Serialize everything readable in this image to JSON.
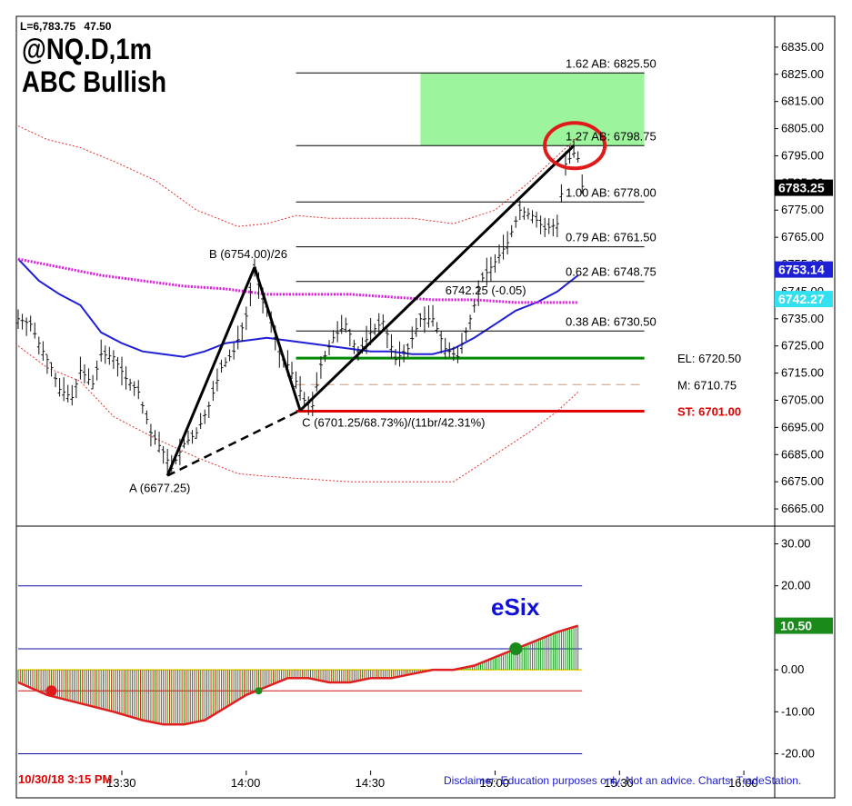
{
  "header": {
    "last_price": "L=6,783.75",
    "change": "47.50",
    "symbol": "@NQ.D,1m",
    "pattern": "ABC Bullish"
  },
  "footer": {
    "datetime": "10/30/18 3:15 PM",
    "disclaimer": "Disclaimer: Education purposes only. Not an advice.  Charts: TradeStation."
  },
  "colors": {
    "target_zone": "#9cf59c",
    "el_line": "#008a00",
    "st_line": "#e00000",
    "m_line": "#c89a7a",
    "lower_band": "#e53030",
    "mid_ma": "#1f1fd6",
    "long_ma": "#e01ee0",
    "osc_up": "#14991a",
    "osc_down": "#e02020",
    "esix": "#1010d8"
  },
  "chart_data": [
    {
      "type": "line",
      "title": "@NQ.D,1m ABC Bullish",
      "price_axis_ticks": [
        "6835.00",
        "6825.00",
        "6815.00",
        "6805.00",
        "6795.00",
        "6785.00",
        "6775.00",
        "6765.00",
        "6755.00",
        "6745.00",
        "6735.00",
        "6725.00",
        "6715.00",
        "6705.00",
        "6695.00",
        "6685.00",
        "6675.00",
        "6665.00"
      ],
      "time_axis_ticks": [
        "13:30",
        "14:00",
        "14:30",
        "15:00",
        "15:30",
        "16:00"
      ],
      "ylim": [
        6659,
        6845
      ],
      "xlim": [
        "13:05",
        "16:07"
      ],
      "series": [
        {
          "name": "price",
          "points": [
            [
              "13:05",
              6735
            ],
            [
              "13:08",
              6733
            ],
            [
              "13:10",
              6726
            ],
            [
              "13:13",
              6717
            ],
            [
              "13:15",
              6709
            ],
            [
              "13:18",
              6706
            ],
            [
              "13:20",
              6716
            ],
            [
              "13:23",
              6711
            ],
            [
              "13:25",
              6722
            ],
            [
              "13:28",
              6721
            ],
            [
              "13:31",
              6713
            ],
            [
              "13:34",
              6708
            ],
            [
              "13:37",
              6693
            ],
            [
              "13:40",
              6686
            ],
            [
              "13:42",
              6680
            ],
            [
              "13:45",
              6689
            ],
            [
              "13:48",
              6693
            ],
            [
              "13:51",
              6703
            ],
            [
              "13:54",
              6717
            ],
            [
              "13:57",
              6723
            ],
            [
              "14:00",
              6736
            ],
            [
              "14:02",
              6754
            ],
            [
              "14:04",
              6741
            ],
            [
              "14:06",
              6734
            ],
            [
              "14:08",
              6722
            ],
            [
              "14:10",
              6718
            ],
            [
              "14:12",
              6712
            ],
            [
              "14:14",
              6705
            ],
            [
              "14:16",
              6703
            ],
            [
              "14:18",
              6718
            ],
            [
              "14:21",
              6728
            ],
            [
              "14:24",
              6733
            ],
            [
              "14:27",
              6722
            ],
            [
              "14:30",
              6730
            ],
            [
              "14:33",
              6734
            ],
            [
              "14:36",
              6720
            ],
            [
              "14:39",
              6724
            ],
            [
              "14:42",
              6735
            ],
            [
              "14:45",
              6735
            ],
            [
              "14:48",
              6724
            ],
            [
              "14:51",
              6721
            ],
            [
              "14:54",
              6735
            ],
            [
              "14:57",
              6750
            ],
            [
              "15:00",
              6756
            ],
            [
              "15:03",
              6763
            ],
            [
              "15:06",
              6775
            ],
            [
              "15:09",
              6773
            ],
            [
              "15:12",
              6768
            ],
            [
              "15:15",
              6770
            ],
            [
              "15:17",
              6792
            ],
            [
              "15:19",
              6796
            ],
            [
              "15:20",
              6794
            ],
            [
              "15:21",
              6783.75
            ]
          ]
        },
        {
          "name": "ma_blue",
          "points": [
            [
              "13:05",
              6757
            ],
            [
              "13:10",
              6749
            ],
            [
              "13:15",
              6744
            ],
            [
              "13:20",
              6740
            ],
            [
              "13:25",
              6730
            ],
            [
              "13:30",
              6726
            ],
            [
              "13:35",
              6723
            ],
            [
              "13:40",
              6722
            ],
            [
              "13:45",
              6721
            ],
            [
              "13:50",
              6723
            ],
            [
              "13:55",
              6726
            ],
            [
              "14:00",
              6727
            ],
            [
              "14:05",
              6728
            ],
            [
              "14:10",
              6727
            ],
            [
              "14:15",
              6726
            ],
            [
              "14:20",
              6725
            ],
            [
              "14:25",
              6724
            ],
            [
              "14:30",
              6723
            ],
            [
              "14:35",
              6723
            ],
            [
              "14:40",
              6722
            ],
            [
              "14:45",
              6722
            ],
            [
              "14:50",
              6724
            ],
            [
              "14:55",
              6728
            ],
            [
              "15:00",
              6733
            ],
            [
              "15:05",
              6738
            ],
            [
              "15:10",
              6741
            ],
            [
              "15:15",
              6745
            ],
            [
              "15:20",
              6751
            ]
          ]
        },
        {
          "name": "ma_magenta",
          "points": [
            [
              "13:05",
              6757
            ],
            [
              "13:15",
              6754
            ],
            [
              "13:25",
              6751
            ],
            [
              "13:35",
              6749
            ],
            [
              "13:45",
              6747
            ],
            [
              "13:55",
              6746
            ],
            [
              "14:05",
              6744
            ],
            [
              "14:15",
              6744
            ],
            [
              "14:25",
              6744
            ],
            [
              "14:35",
              6743
            ],
            [
              "14:45",
              6742
            ],
            [
              "14:55",
              6742
            ],
            [
              "15:05",
              6741
            ],
            [
              "15:15",
              6741
            ],
            [
              "15:20",
              6741
            ]
          ]
        },
        {
          "name": "band_upper",
          "points": [
            [
              "13:05",
              6806
            ],
            [
              "13:12",
              6801
            ],
            [
              "13:20",
              6798
            ],
            [
              "13:28",
              6793
            ],
            [
              "13:38",
              6786
            ],
            [
              "13:48",
              6775
            ],
            [
              "13:58",
              6769
            ],
            [
              "14:05",
              6770
            ],
            [
              "14:12",
              6773
            ],
            [
              "14:20",
              6772
            ],
            [
              "14:30",
              6772
            ],
            [
              "14:40",
              6772
            ],
            [
              "14:50",
              6770
            ],
            [
              "15:00",
              6775
            ],
            [
              "15:08",
              6785
            ],
            [
              "15:15",
              6795
            ],
            [
              "15:20",
              6802
            ]
          ]
        },
        {
          "name": "band_lower",
          "points": [
            [
              "13:05",
              6725
            ],
            [
              "13:12",
              6717
            ],
            [
              "13:20",
              6712
            ],
            [
              "13:28",
              6699
            ],
            [
              "13:38",
              6691
            ],
            [
              "13:48",
              6684
            ],
            [
              "13:58",
              6678
            ],
            [
              "14:05",
              6677
            ],
            [
              "14:15",
              6676
            ],
            [
              "14:25",
              6675
            ],
            [
              "14:35",
              6675
            ],
            [
              "14:45",
              6675
            ],
            [
              "14:50",
              6675
            ],
            [
              "15:00",
              6685
            ],
            [
              "15:08",
              6693
            ],
            [
              "15:15",
              6701
            ],
            [
              "15:20",
              6708
            ]
          ]
        }
      ],
      "levels": [
        {
          "label": "1.62 AB: 6825.50",
          "value": 6825.5
        },
        {
          "label": "1.27 AB: 6798.75",
          "value": 6798.75
        },
        {
          "label": "1.00 AB: 6778.00",
          "value": 6778.0
        },
        {
          "label": "0.79 AB: 6761.50",
          "value": 6761.5
        },
        {
          "label": "0.62 AB: 6748.75",
          "value": 6748.75
        },
        {
          "label": "0.38 AB: 6730.50",
          "value": 6730.5
        },
        {
          "label": "EL: 6720.50",
          "value": 6720.5
        },
        {
          "label": "M: 6710.75",
          "value": 6710.75
        },
        {
          "label": "ST: 6701.00",
          "value": 6701.0
        }
      ],
      "target_zone": {
        "from_time": "14:42",
        "to_time": "15:36",
        "low": 6798.75,
        "high": 6825.5
      },
      "abc_points": [
        {
          "name": "A",
          "time": "13:41",
          "price": 6677.25,
          "label": "A (6677.25)"
        },
        {
          "name": "B",
          "time": "14:02",
          "price": 6754.0,
          "label": "B (6754.00)/26"
        },
        {
          "name": "C",
          "time": "14:13",
          "price": 6701.25,
          "label": "C (6701.25/68.73%)/(11br/42.31%)"
        },
        {
          "name": "D",
          "time": "15:19",
          "price": 6798.75,
          "label": ""
        }
      ],
      "annotation": {
        "text": "6742.25 (-0.05)",
        "time": "14:48",
        "price": 6744
      },
      "axis_tags": [
        {
          "value": 6783.25,
          "text": "6783.25",
          "style": "black"
        },
        {
          "value": 6753.14,
          "text": "6753.14",
          "style": "blue"
        },
        {
          "value": 6742.27,
          "text": "6742.27",
          "style": "cyan"
        }
      ]
    },
    {
      "type": "area",
      "title": "eSix",
      "y_axis_ticks": [
        "30.00",
        "20.00",
        "10.00",
        "0.00",
        "-10.00",
        "-20.00"
      ],
      "ylim": [
        -24,
        34
      ],
      "reference_lines": [
        20,
        5,
        -5,
        -20
      ],
      "current_value": 10.5,
      "current_text": "10.50",
      "signal_dots": [
        {
          "time": "13:13",
          "value": -5,
          "color": "red"
        },
        {
          "time": "14:03",
          "value": -5,
          "color": "green"
        },
        {
          "time": "15:05",
          "value": 5,
          "color": "green"
        }
      ],
      "series": [
        {
          "name": "eSix",
          "points": [
            [
              "13:05",
              -3
            ],
            [
              "13:12",
              -6
            ],
            [
              "13:20",
              -8
            ],
            [
              "13:28",
              -10
            ],
            [
              "13:35",
              -12
            ],
            [
              "13:40",
              -13
            ],
            [
              "13:45",
              -13
            ],
            [
              "13:50",
              -12
            ],
            [
              "13:55",
              -9
            ],
            [
              "14:00",
              -6
            ],
            [
              "14:05",
              -4
            ],
            [
              "14:10",
              -2
            ],
            [
              "14:15",
              -2
            ],
            [
              "14:20",
              -3
            ],
            [
              "14:25",
              -3
            ],
            [
              "14:30",
              -2
            ],
            [
              "14:35",
              -2
            ],
            [
              "14:40",
              -1
            ],
            [
              "14:45",
              0
            ],
            [
              "14:50",
              0
            ],
            [
              "14:55",
              1
            ],
            [
              "15:00",
              3
            ],
            [
              "15:05",
              5
            ],
            [
              "15:10",
              7
            ],
            [
              "15:15",
              9
            ],
            [
              "15:20",
              10.5
            ]
          ]
        }
      ]
    }
  ]
}
